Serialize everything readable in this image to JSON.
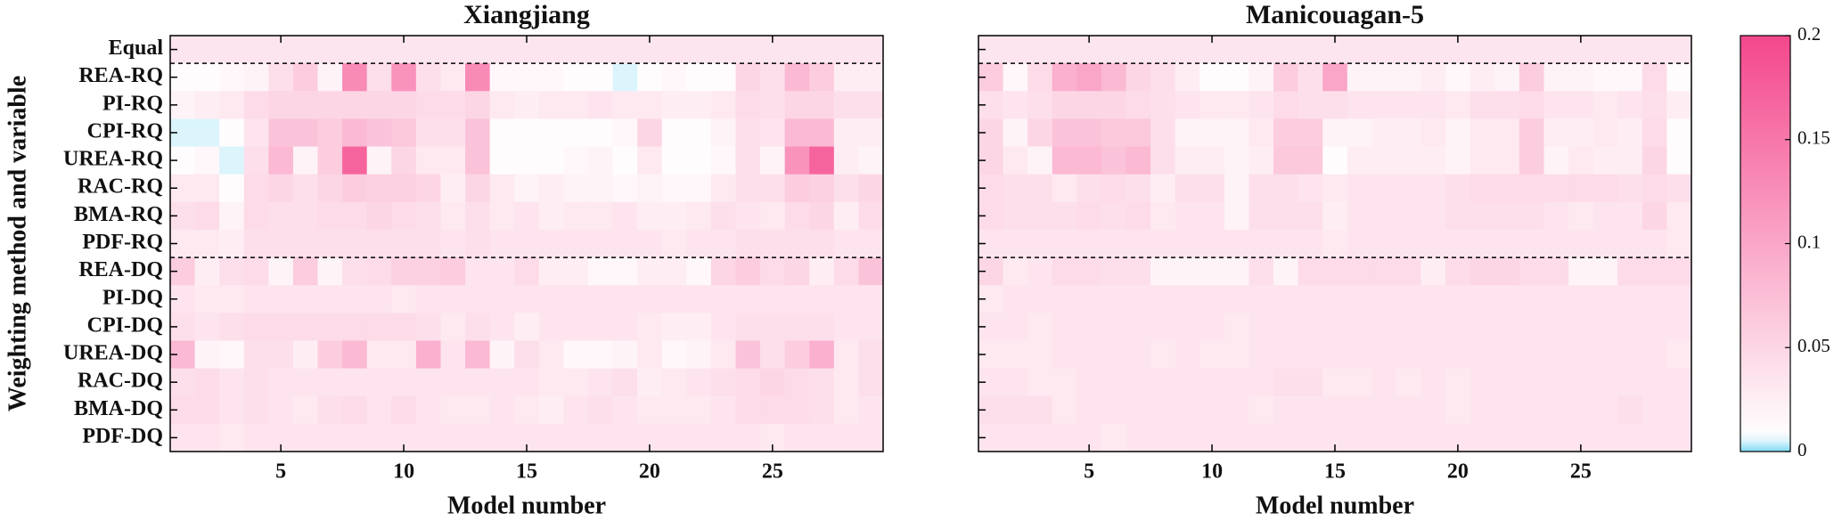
{
  "chart_data": [
    {
      "type": "heatmap",
      "title": "Xiangjiang",
      "x_label": "Model number",
      "y_label": "Weighting method and variable",
      "categories": [
        "Equal",
        "REA-RQ",
        "PI-RQ",
        "CPI-RQ",
        "UREA-RQ",
        "RAC-RQ",
        "BMA-RQ",
        "PDF-RQ",
        "REA-DQ",
        "PI-DQ",
        "CPI-DQ",
        "UREA-DQ",
        "RAC-DQ",
        "BMA-DQ",
        "PDF-DQ"
      ],
      "x": [
        1,
        2,
        3,
        4,
        5,
        6,
        7,
        8,
        9,
        10,
        11,
        12,
        13,
        14,
        15,
        16,
        17,
        18,
        19,
        20,
        21,
        22,
        23,
        24,
        25,
        26,
        27,
        28,
        29
      ],
      "xlim": [
        0.5,
        29.5
      ],
      "xticks": [
        5,
        10,
        15,
        20,
        25
      ],
      "values": [
        [
          0.0345,
          0.0345,
          0.0345,
          0.0345,
          0.0345,
          0.0345,
          0.0345,
          0.0345,
          0.0345,
          0.0345,
          0.0345,
          0.0345,
          0.0345,
          0.0345,
          0.0345,
          0.0345,
          0.0345,
          0.0345,
          0.0345,
          0.0345,
          0.0345,
          0.0345,
          0.0345,
          0.0345,
          0.0345,
          0.0345,
          0.0345,
          0.0345,
          0.0345
        ],
        [
          0.01,
          0.01,
          0.015,
          0.02,
          0.04,
          0.06,
          0.02,
          0.13,
          0.04,
          0.12,
          0.04,
          0.03,
          0.13,
          0.015,
          0.015,
          0.015,
          0.01,
          0.01,
          0.005,
          0.01,
          0.015,
          0.01,
          0.01,
          0.05,
          0.04,
          0.08,
          0.06,
          0.025,
          0.025
        ],
        [
          0.02,
          0.025,
          0.03,
          0.045,
          0.05,
          0.05,
          0.05,
          0.05,
          0.05,
          0.05,
          0.045,
          0.045,
          0.05,
          0.03,
          0.025,
          0.03,
          0.03,
          0.035,
          0.03,
          0.03,
          0.025,
          0.025,
          0.03,
          0.045,
          0.04,
          0.05,
          0.05,
          0.04,
          0.04
        ],
        [
          0.005,
          0.005,
          0.01,
          0.035,
          0.07,
          0.07,
          0.06,
          0.08,
          0.07,
          0.065,
          0.04,
          0.04,
          0.07,
          0.01,
          0.01,
          0.01,
          0.01,
          0.01,
          0.015,
          0.05,
          0.01,
          0.01,
          0.02,
          0.04,
          0.035,
          0.08,
          0.08,
          0.025,
          0.025
        ],
        [
          0.01,
          0.015,
          0.005,
          0.04,
          0.08,
          0.02,
          0.06,
          0.17,
          0.02,
          0.05,
          0.03,
          0.03,
          0.07,
          0.01,
          0.01,
          0.01,
          0.015,
          0.02,
          0.01,
          0.03,
          0.01,
          0.01,
          0.015,
          0.04,
          0.02,
          0.12,
          0.17,
          0.025,
          0.02
        ],
        [
          0.03,
          0.03,
          0.01,
          0.045,
          0.05,
          0.04,
          0.05,
          0.06,
          0.055,
          0.055,
          0.05,
          0.025,
          0.05,
          0.03,
          0.02,
          0.025,
          0.02,
          0.02,
          0.015,
          0.02,
          0.015,
          0.015,
          0.03,
          0.04,
          0.04,
          0.06,
          0.055,
          0.04,
          0.05
        ],
        [
          0.04,
          0.045,
          0.02,
          0.045,
          0.04,
          0.04,
          0.045,
          0.045,
          0.05,
          0.045,
          0.04,
          0.03,
          0.04,
          0.03,
          0.035,
          0.025,
          0.03,
          0.03,
          0.035,
          0.025,
          0.025,
          0.03,
          0.04,
          0.035,
          0.03,
          0.045,
          0.05,
          0.025,
          0.045
        ],
        [
          0.03,
          0.03,
          0.025,
          0.04,
          0.04,
          0.04,
          0.04,
          0.04,
          0.04,
          0.04,
          0.04,
          0.035,
          0.04,
          0.035,
          0.035,
          0.035,
          0.035,
          0.035,
          0.035,
          0.035,
          0.03,
          0.035,
          0.035,
          0.04,
          0.04,
          0.04,
          0.04,
          0.035,
          0.035
        ],
        [
          0.06,
          0.025,
          0.04,
          0.045,
          0.02,
          0.06,
          0.02,
          0.04,
          0.045,
          0.055,
          0.055,
          0.06,
          0.035,
          0.035,
          0.045,
          0.025,
          0.025,
          0.015,
          0.015,
          0.025,
          0.025,
          0.015,
          0.05,
          0.06,
          0.045,
          0.05,
          0.025,
          0.045,
          0.07
        ],
        [
          0.035,
          0.03,
          0.03,
          0.035,
          0.035,
          0.035,
          0.035,
          0.035,
          0.035,
          0.03,
          0.035,
          0.035,
          0.035,
          0.035,
          0.035,
          0.035,
          0.035,
          0.035,
          0.035,
          0.035,
          0.035,
          0.035,
          0.035,
          0.035,
          0.035,
          0.035,
          0.035,
          0.035,
          0.035
        ],
        [
          0.04,
          0.035,
          0.04,
          0.045,
          0.045,
          0.045,
          0.045,
          0.045,
          0.045,
          0.045,
          0.04,
          0.03,
          0.04,
          0.035,
          0.025,
          0.035,
          0.035,
          0.035,
          0.035,
          0.03,
          0.025,
          0.025,
          0.035,
          0.04,
          0.04,
          0.04,
          0.04,
          0.035,
          0.035
        ],
        [
          0.08,
          0.02,
          0.015,
          0.04,
          0.04,
          0.025,
          0.06,
          0.08,
          0.03,
          0.03,
          0.09,
          0.035,
          0.08,
          0.02,
          0.04,
          0.03,
          0.015,
          0.015,
          0.02,
          0.03,
          0.015,
          0.02,
          0.03,
          0.07,
          0.04,
          0.06,
          0.09,
          0.03,
          0.04
        ],
        [
          0.04,
          0.045,
          0.035,
          0.04,
          0.035,
          0.035,
          0.035,
          0.035,
          0.035,
          0.035,
          0.035,
          0.035,
          0.035,
          0.035,
          0.035,
          0.03,
          0.03,
          0.035,
          0.04,
          0.025,
          0.03,
          0.035,
          0.04,
          0.045,
          0.05,
          0.045,
          0.04,
          0.03,
          0.04
        ],
        [
          0.045,
          0.045,
          0.035,
          0.04,
          0.035,
          0.03,
          0.04,
          0.045,
          0.035,
          0.045,
          0.035,
          0.03,
          0.03,
          0.035,
          0.03,
          0.025,
          0.035,
          0.04,
          0.035,
          0.03,
          0.03,
          0.03,
          0.035,
          0.045,
          0.045,
          0.045,
          0.04,
          0.03,
          0.035
        ],
        [
          0.035,
          0.035,
          0.03,
          0.035,
          0.035,
          0.035,
          0.035,
          0.035,
          0.035,
          0.035,
          0.035,
          0.035,
          0.035,
          0.035,
          0.035,
          0.035,
          0.035,
          0.035,
          0.035,
          0.035,
          0.035,
          0.035,
          0.035,
          0.035,
          0.03,
          0.035,
          0.035,
          0.035,
          0.035
        ]
      ]
    },
    {
      "type": "heatmap",
      "title": "Manicouagan-5",
      "x_label": "Model number",
      "x": [
        1,
        2,
        3,
        4,
        5,
        6,
        7,
        8,
        9,
        10,
        11,
        12,
        13,
        14,
        15,
        16,
        17,
        18,
        19,
        20,
        21,
        22,
        23,
        24,
        25,
        26,
        27,
        28,
        29
      ],
      "xlim": [
        0.5,
        29.5
      ],
      "xticks": [
        5,
        10,
        15,
        20,
        25
      ],
      "values": [
        [
          0.0345,
          0.0345,
          0.0345,
          0.0345,
          0.0345,
          0.0345,
          0.0345,
          0.0345,
          0.0345,
          0.0345,
          0.0345,
          0.0345,
          0.0345,
          0.0345,
          0.0345,
          0.0345,
          0.0345,
          0.0345,
          0.0345,
          0.0345,
          0.0345,
          0.0345,
          0.0345,
          0.0345,
          0.0345,
          0.0345,
          0.0345,
          0.0345,
          0.0345
        ],
        [
          0.06,
          0.015,
          0.045,
          0.09,
          0.1,
          0.08,
          0.05,
          0.04,
          0.025,
          0.01,
          0.01,
          0.02,
          0.06,
          0.04,
          0.1,
          0.02,
          0.02,
          0.02,
          0.025,
          0.015,
          0.025,
          0.02,
          0.06,
          0.02,
          0.02,
          0.015,
          0.015,
          0.045,
          0.01
        ],
        [
          0.04,
          0.035,
          0.04,
          0.05,
          0.05,
          0.05,
          0.045,
          0.04,
          0.035,
          0.03,
          0.03,
          0.035,
          0.045,
          0.04,
          0.04,
          0.035,
          0.035,
          0.035,
          0.035,
          0.03,
          0.04,
          0.04,
          0.045,
          0.035,
          0.035,
          0.03,
          0.035,
          0.04,
          0.025
        ],
        [
          0.05,
          0.02,
          0.05,
          0.07,
          0.07,
          0.065,
          0.065,
          0.04,
          0.02,
          0.02,
          0.02,
          0.03,
          0.06,
          0.06,
          0.02,
          0.02,
          0.025,
          0.025,
          0.03,
          0.02,
          0.03,
          0.03,
          0.06,
          0.025,
          0.025,
          0.03,
          0.025,
          0.045,
          0.01
        ],
        [
          0.05,
          0.03,
          0.02,
          0.08,
          0.08,
          0.07,
          0.08,
          0.04,
          0.025,
          0.025,
          0.02,
          0.025,
          0.065,
          0.065,
          0.01,
          0.025,
          0.025,
          0.025,
          0.025,
          0.02,
          0.03,
          0.03,
          0.06,
          0.02,
          0.03,
          0.025,
          0.025,
          0.05,
          0.01
        ],
        [
          0.045,
          0.04,
          0.04,
          0.03,
          0.04,
          0.045,
          0.04,
          0.025,
          0.04,
          0.04,
          0.02,
          0.04,
          0.04,
          0.035,
          0.03,
          0.035,
          0.035,
          0.035,
          0.035,
          0.04,
          0.045,
          0.045,
          0.045,
          0.045,
          0.045,
          0.045,
          0.04,
          0.045,
          0.04
        ],
        [
          0.045,
          0.04,
          0.04,
          0.04,
          0.045,
          0.04,
          0.045,
          0.03,
          0.035,
          0.035,
          0.02,
          0.04,
          0.04,
          0.04,
          0.025,
          0.035,
          0.035,
          0.035,
          0.035,
          0.04,
          0.04,
          0.04,
          0.04,
          0.035,
          0.03,
          0.035,
          0.035,
          0.05,
          0.03
        ],
        [
          0.035,
          0.035,
          0.035,
          0.035,
          0.035,
          0.035,
          0.035,
          0.035,
          0.035,
          0.035,
          0.035,
          0.035,
          0.035,
          0.035,
          0.03,
          0.035,
          0.035,
          0.035,
          0.035,
          0.035,
          0.035,
          0.035,
          0.035,
          0.035,
          0.035,
          0.035,
          0.035,
          0.035,
          0.03
        ],
        [
          0.05,
          0.03,
          0.035,
          0.045,
          0.045,
          0.04,
          0.04,
          0.02,
          0.02,
          0.02,
          0.02,
          0.04,
          0.02,
          0.045,
          0.045,
          0.045,
          0.045,
          0.045,
          0.025,
          0.045,
          0.05,
          0.05,
          0.045,
          0.045,
          0.02,
          0.02,
          0.045,
          0.045,
          0.045
        ],
        [
          0.03,
          0.035,
          0.035,
          0.035,
          0.035,
          0.035,
          0.035,
          0.035,
          0.035,
          0.035,
          0.035,
          0.035,
          0.035,
          0.035,
          0.035,
          0.035,
          0.035,
          0.035,
          0.035,
          0.035,
          0.035,
          0.035,
          0.035,
          0.035,
          0.035,
          0.035,
          0.035,
          0.035,
          0.035
        ],
        [
          0.035,
          0.035,
          0.03,
          0.035,
          0.035,
          0.035,
          0.035,
          0.035,
          0.035,
          0.035,
          0.03,
          0.035,
          0.035,
          0.035,
          0.035,
          0.035,
          0.035,
          0.035,
          0.035,
          0.035,
          0.035,
          0.035,
          0.035,
          0.035,
          0.035,
          0.035,
          0.035,
          0.035,
          0.035
        ],
        [
          0.03,
          0.03,
          0.03,
          0.035,
          0.035,
          0.035,
          0.035,
          0.03,
          0.035,
          0.03,
          0.03,
          0.035,
          0.035,
          0.035,
          0.035,
          0.035,
          0.035,
          0.035,
          0.035,
          0.035,
          0.035,
          0.035,
          0.035,
          0.035,
          0.035,
          0.035,
          0.035,
          0.035,
          0.03
        ],
        [
          0.035,
          0.035,
          0.03,
          0.03,
          0.035,
          0.035,
          0.035,
          0.035,
          0.035,
          0.035,
          0.035,
          0.035,
          0.04,
          0.04,
          0.03,
          0.03,
          0.035,
          0.03,
          0.035,
          0.03,
          0.035,
          0.035,
          0.035,
          0.035,
          0.035,
          0.035,
          0.035,
          0.035,
          0.035
        ],
        [
          0.04,
          0.04,
          0.04,
          0.03,
          0.035,
          0.035,
          0.035,
          0.035,
          0.035,
          0.035,
          0.035,
          0.03,
          0.035,
          0.035,
          0.035,
          0.035,
          0.035,
          0.035,
          0.035,
          0.03,
          0.035,
          0.035,
          0.035,
          0.035,
          0.035,
          0.035,
          0.04,
          0.035,
          0.035
        ],
        [
          0.035,
          0.035,
          0.035,
          0.035,
          0.035,
          0.03,
          0.035,
          0.035,
          0.035,
          0.035,
          0.035,
          0.035,
          0.035,
          0.035,
          0.035,
          0.035,
          0.035,
          0.035,
          0.035,
          0.035,
          0.035,
          0.035,
          0.035,
          0.035,
          0.035,
          0.035,
          0.035,
          0.035,
          0.035
        ]
      ]
    }
  ],
  "colorbar": {
    "lim": [
      0,
      0.2
    ],
    "ticks": [
      0,
      0.05,
      0.1,
      0.15,
      0.2
    ],
    "colors": [
      "#7fdbf5",
      "#ffffff",
      "#f4478c"
    ]
  }
}
